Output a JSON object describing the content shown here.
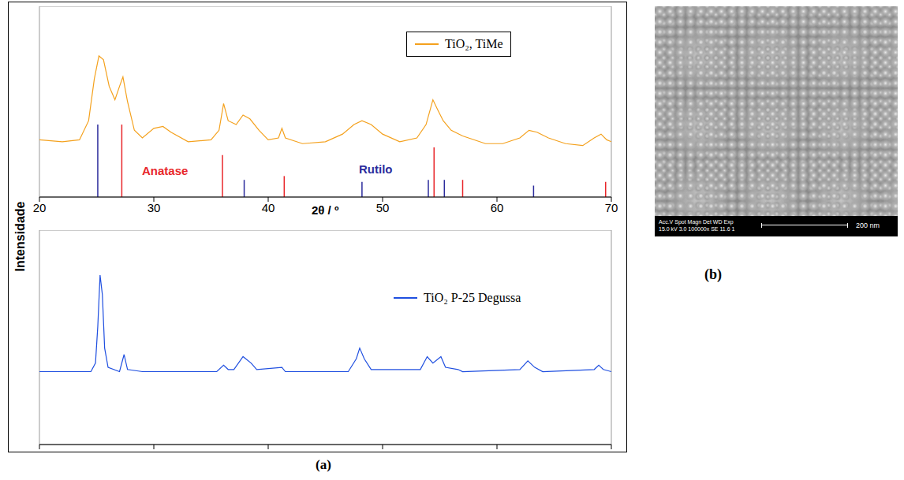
{
  "chart_data": [
    {
      "type": "line",
      "xlabel": "2θ / º",
      "ylabel": "Intensidade",
      "xlim": [
        20,
        70
      ],
      "xticks": [
        20,
        30,
        40,
        50,
        60,
        70
      ],
      "ylim": [
        0,
        100
      ],
      "yticks": [],
      "tick_labels": "x",
      "legend": "upper right",
      "series": [
        {
          "name": "TiO₂, TiMe",
          "color": "#f4a11d",
          "x": [
            20,
            22,
            23.5,
            24.3,
            24.8,
            25.2,
            25.6,
            26.1,
            26.6,
            27.0,
            27.3,
            27.7,
            28.3,
            29,
            30,
            30.8,
            31.5,
            33,
            35,
            35.7,
            36.1,
            36.5,
            37.2,
            37.8,
            38.4,
            39.2,
            40,
            40.9,
            41.2,
            41.5,
            43,
            45,
            46.5,
            47.5,
            48.2,
            49,
            50,
            51.5,
            53,
            53.8,
            54.4,
            54.8,
            55.3,
            56,
            57,
            59,
            60.5,
            62,
            62.8,
            63.5,
            64.5,
            66,
            67.5,
            68.5,
            69.1,
            69.6,
            70
          ],
          "values": [
            30,
            29,
            30,
            40,
            62,
            74,
            72,
            58,
            51,
            58,
            63,
            50,
            35,
            31,
            36,
            37,
            34,
            29,
            30,
            35,
            49,
            40,
            38,
            43,
            41,
            35,
            30,
            31,
            36,
            31,
            28,
            29,
            33,
            38,
            40,
            38,
            33,
            29,
            31,
            38,
            51,
            46,
            40,
            35,
            32,
            28,
            28,
            31,
            35,
            34,
            31,
            28,
            27,
            31,
            33,
            30,
            29
          ]
        },
        {
          "name": "Anatase",
          "type": "stick",
          "color": "#e8262a",
          "x": [
            27.2,
            36.0,
            41.4,
            54.5,
            57.0,
            69.5
          ],
          "values": [
            38,
            22,
            11,
            26,
            9,
            8
          ]
        },
        {
          "name": "Rutilo",
          "type": "stick",
          "color": "#2b2b9c",
          "x": [
            25.1,
            37.9,
            48.2,
            54.0,
            55.4,
            63.2
          ],
          "values": [
            38,
            9,
            8,
            9,
            9,
            6
          ]
        }
      ]
    },
    {
      "type": "line",
      "xlim": [
        20,
        70
      ],
      "xticks": [
        20,
        30,
        40,
        50,
        60,
        70
      ],
      "ylim": [
        0,
        100
      ],
      "yticks": [],
      "tick_labels": false,
      "legend": "upper right",
      "series": [
        {
          "name": "TiO₂ P-25 Degussa",
          "color": "#1f4fe0",
          "x": [
            20,
            24.5,
            24.9,
            25.1,
            25.3,
            25.5,
            25.7,
            26,
            27,
            27.4,
            27.7,
            29,
            35.5,
            36.1,
            36.5,
            37,
            37.8,
            38.5,
            39,
            41.2,
            41.5,
            47,
            47.7,
            48.0,
            48.4,
            49,
            53.3,
            53.9,
            54.4,
            55.1,
            55.5,
            56.6,
            57,
            62,
            62.7,
            63.3,
            64,
            68.5,
            68.9,
            69.3,
            70
          ],
          "values": [
            34,
            34,
            38,
            55,
            79,
            70,
            45,
            36,
            34,
            42,
            35,
            34,
            34,
            37,
            35,
            35,
            41,
            38,
            35,
            36,
            34,
            34,
            40,
            45,
            40,
            35,
            35,
            41,
            38,
            41,
            36,
            35,
            34,
            35,
            39,
            36,
            34,
            35,
            37,
            35,
            34
          ]
        }
      ]
    }
  ],
  "panel_labels": [
    "(a)",
    "(b)"
  ],
  "image": {
    "info": [
      "Acc.V Spot Magn Det WD Exp",
      "15.0 kV 3.0 100000x SE 11.6 1"
    ],
    "scale_bar": "200 nm"
  }
}
